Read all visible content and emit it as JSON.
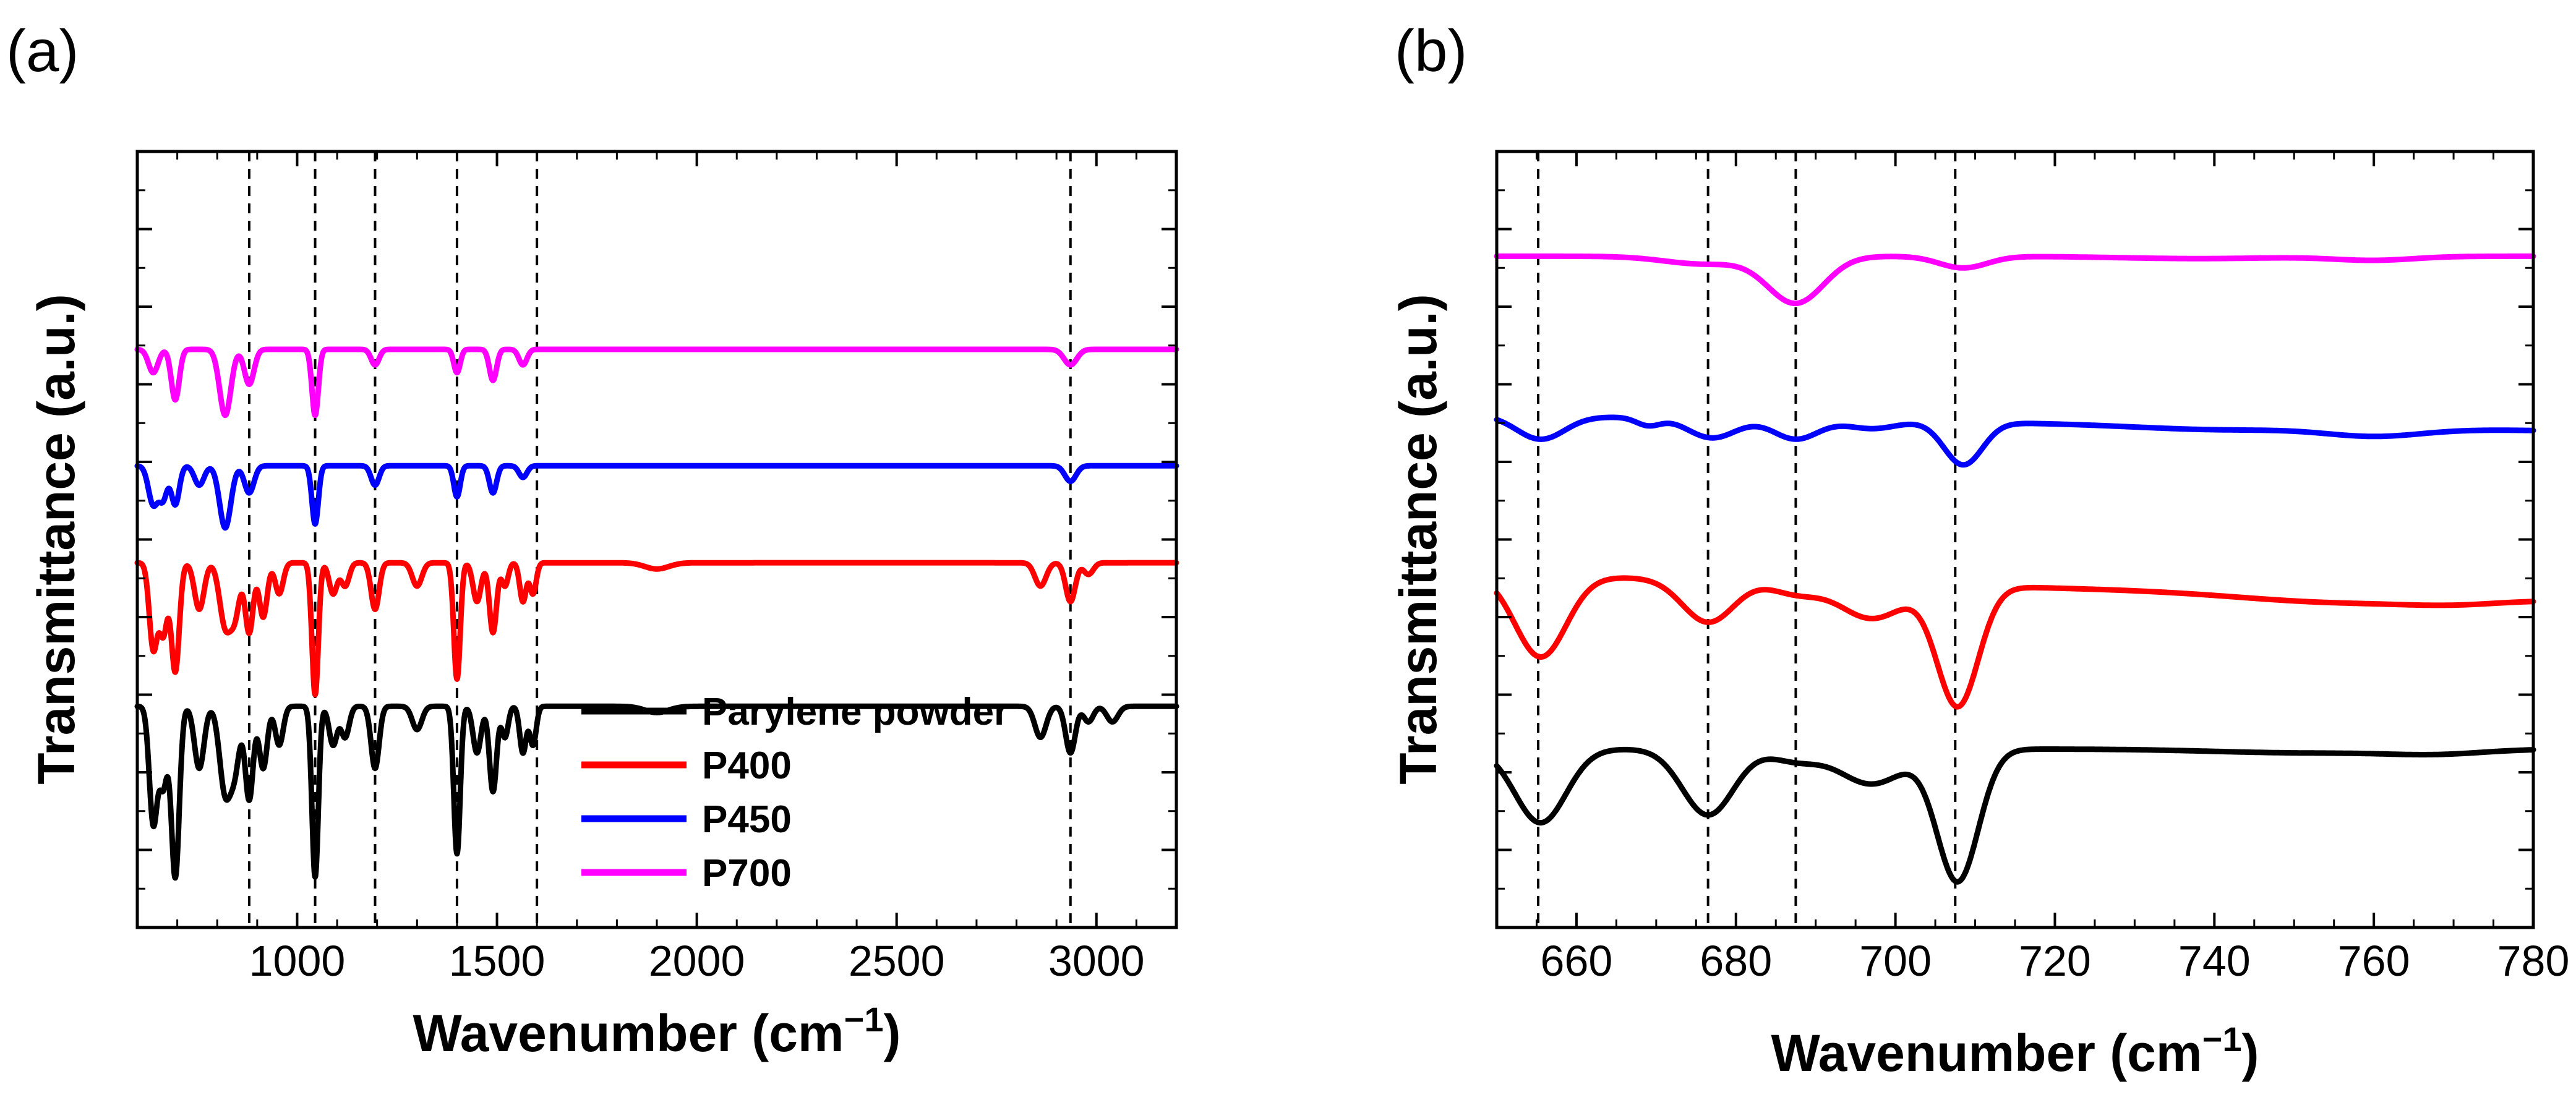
{
  "chart_data": [
    {
      "panel_label": "(a)",
      "type": "line",
      "xlabel_main": "Wavenumber (cm",
      "xlabel_sup": "−1",
      "xlabel_close": ")",
      "ylabel": "Transmittance (a.u.)",
      "xlim": [
        600,
        3200
      ],
      "ylim": [
        0,
        10
      ],
      "xticks": [
        1000,
        1500,
        2000,
        2500,
        3000
      ],
      "xtick_labels": [
        "1000",
        "1500",
        "2000",
        "2500",
        "3000"
      ],
      "y_tick_labels_shown": false,
      "reference_lines_x": [
        880,
        1045,
        1195,
        1400,
        1600,
        2935
      ],
      "legend_position": "bottom-right",
      "series": [
        {
          "name": "Parylene powder",
          "color": "#000000",
          "baseline": 2.85,
          "bands": [
            [
              640,
              1.5,
              10
            ],
            [
              665,
              1.0,
              10
            ],
            [
              695,
              2.2,
              10
            ],
            [
              755,
              0.8,
              12
            ],
            [
              820,
              1.1,
              14
            ],
            [
              845,
              0.7,
              12
            ],
            [
              880,
              1.2,
              10
            ],
            [
              915,
              0.8,
              10
            ],
            [
              955,
              0.5,
              10
            ],
            [
              1045,
              2.2,
              8
            ],
            [
              1090,
              0.5,
              10
            ],
            [
              1120,
              0.4,
              10
            ],
            [
              1195,
              0.8,
              10
            ],
            [
              1300,
              0.3,
              12
            ],
            [
              1400,
              1.9,
              8
            ],
            [
              1450,
              0.6,
              10
            ],
            [
              1490,
              1.1,
              9
            ],
            [
              1520,
              0.4,
              8
            ],
            [
              1565,
              0.6,
              8
            ],
            [
              1590,
              0.5,
              8
            ],
            [
              1900,
              0.08,
              30
            ],
            [
              2860,
              0.4,
              14
            ],
            [
              2935,
              0.6,
              12
            ],
            [
              2980,
              0.2,
              12
            ],
            [
              3040,
              0.2,
              14
            ]
          ]
        },
        {
          "name": "P400",
          "color": "#ff0000",
          "baseline": 4.7,
          "bands": [
            [
              640,
              1.1,
              10
            ],
            [
              665,
              0.9,
              10
            ],
            [
              695,
              1.4,
              10
            ],
            [
              755,
              0.6,
              12
            ],
            [
              820,
              0.8,
              14
            ],
            [
              845,
              0.6,
              12
            ],
            [
              880,
              0.9,
              10
            ],
            [
              915,
              0.7,
              10
            ],
            [
              955,
              0.4,
              10
            ],
            [
              1045,
              1.7,
              8
            ],
            [
              1090,
              0.4,
              10
            ],
            [
              1120,
              0.3,
              10
            ],
            [
              1195,
              0.6,
              10
            ],
            [
              1300,
              0.3,
              12
            ],
            [
              1400,
              1.5,
              8
            ],
            [
              1450,
              0.5,
              10
            ],
            [
              1490,
              0.9,
              9
            ],
            [
              1520,
              0.3,
              8
            ],
            [
              1565,
              0.5,
              8
            ],
            [
              1590,
              0.4,
              8
            ],
            [
              1900,
              0.08,
              30
            ],
            [
              2860,
              0.3,
              14
            ],
            [
              2935,
              0.5,
              12
            ],
            [
              2980,
              0.15,
              12
            ]
          ]
        },
        {
          "name": "P450",
          "color": "#0000ff",
          "baseline": 5.95,
          "bands": [
            [
              640,
              0.5,
              12
            ],
            [
              665,
              0.4,
              10
            ],
            [
              695,
              0.5,
              10
            ],
            [
              755,
              0.25,
              12
            ],
            [
              820,
              0.8,
              14
            ],
            [
              880,
              0.35,
              12
            ],
            [
              1045,
              0.75,
              8
            ],
            [
              1195,
              0.25,
              10
            ],
            [
              1400,
              0.4,
              8
            ],
            [
              1490,
              0.35,
              9
            ],
            [
              1565,
              0.15,
              10
            ],
            [
              2935,
              0.2,
              14
            ]
          ]
        },
        {
          "name": "P700",
          "color": "#ff00ff",
          "baseline": 7.45,
          "bands": [
            [
              640,
              0.3,
              12
            ],
            [
              695,
              0.65,
              10
            ],
            [
              820,
              0.85,
              14
            ],
            [
              880,
              0.45,
              12
            ],
            [
              1045,
              0.85,
              8
            ],
            [
              1195,
              0.2,
              10
            ],
            [
              1400,
              0.3,
              8
            ],
            [
              1490,
              0.4,
              9
            ],
            [
              1565,
              0.2,
              10
            ],
            [
              2935,
              0.2,
              16
            ]
          ]
        }
      ]
    },
    {
      "panel_label": "(b)",
      "type": "line",
      "xlabel_main": "Wavenumber (cm",
      "xlabel_sup": "−1",
      "xlabel_close": ")",
      "ylabel": "Transmittance (a.u.)",
      "xlim": [
        650,
        780
      ],
      "ylim": [
        0,
        10
      ],
      "xticks": [
        660,
        680,
        700,
        720,
        740,
        760,
        780
      ],
      "xtick_labels": [
        "660",
        "680",
        "700",
        "720",
        "740",
        "760",
        "780"
      ],
      "y_tick_labels_shown": false,
      "reference_lines_x": [
        655.2,
        676.5,
        687.5,
        707.5
      ],
      "series": [
        {
          "name": "Parylene powder",
          "color": "#000000",
          "baseline": 2.3,
          "slope": 0.0,
          "bands": [
            [
              655.5,
              0.95,
              3.2
            ],
            [
              676.5,
              0.85,
              3.2
            ],
            [
              687.5,
              0.15,
              3
            ],
            [
              697,
              0.45,
              4
            ],
            [
              707.8,
              1.7,
              2.6
            ],
            [
              752,
              0.05,
              12
            ],
            [
              768,
              0.05,
              6
            ]
          ]
        },
        {
          "name": "P400",
          "color": "#ff0000",
          "baseline": 4.55,
          "slope": -0.0025,
          "bands": [
            [
              655.5,
              1.05,
              3.2
            ],
            [
              676.5,
              0.55,
              3.2
            ],
            [
              687.5,
              0.15,
              3
            ],
            [
              697,
              0.45,
              4
            ],
            [
              707.8,
              1.55,
              2.6
            ],
            [
              755,
              0.1,
              12
            ],
            [
              770,
              0.05,
              6
            ]
          ]
        },
        {
          "name": "P450",
          "color": "#0000ff",
          "baseline": 6.6,
          "slope": -0.0015,
          "bands": [
            [
              655.5,
              0.3,
              3
            ],
            [
              669,
              0.1,
              1.5
            ],
            [
              677,
              0.25,
              3
            ],
            [
              687.5,
              0.25,
              2.8
            ],
            [
              697,
              0.1,
              3
            ],
            [
              708.5,
              0.55,
              2.4
            ],
            [
              740,
              0.05,
              10
            ],
            [
              760,
              0.1,
              6
            ]
          ]
        },
        {
          "name": "P700",
          "color": "#ff00ff",
          "baseline": 8.65,
          "slope": 0.0,
          "bands": [
            [
              676,
              0.1,
              5
            ],
            [
              687.5,
              0.6,
              3.5
            ],
            [
              708.5,
              0.15,
              3
            ],
            [
              738,
              0.03,
              10
            ],
            [
              760,
              0.05,
              5
            ]
          ]
        }
      ]
    }
  ]
}
